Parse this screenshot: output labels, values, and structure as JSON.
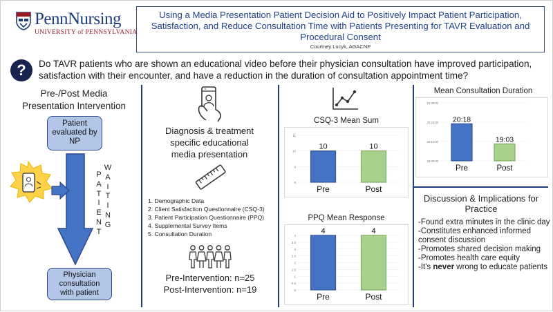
{
  "logo": {
    "brand": "PennNursing",
    "university": "UNIVERSITY of PENNSYLVANIA"
  },
  "title": {
    "line1": "Using a Media Presentation Patient Decision Aid to Positively Impact Patient Participation,",
    "line2": "Satisfaction, and Reduce Consultation Time with Patients Presenting for TAVR Evaluation and",
    "line3": "Procedural Consent",
    "author": "Courtney Lucyk, AGACNP"
  },
  "question": {
    "icon": "?",
    "line1": "Do TAVR patients who are shown an educational video before their physician consultation have improved participation,",
    "line2": "satisfaction with their encounter, and have a reduction in the duration of consultation appointment time?"
  },
  "intervention": {
    "heading_line1": "Pre-/Post Media",
    "heading_line2": "Presentation Intervention",
    "np_box": [
      "Patient",
      "evaluated by",
      "NP"
    ],
    "physician_box": [
      "Physician",
      "consultation",
      "with patient"
    ],
    "word_patient": [
      "P",
      "A",
      "T",
      "I",
      "E",
      "N",
      "T"
    ],
    "word_waiting": [
      "W",
      "A",
      "I",
      "T",
      "I",
      "N",
      "G"
    ]
  },
  "media": {
    "heading": [
      "Diagnosis & treatment",
      "specific educational",
      "media presentation"
    ],
    "measures": [
      "1. Demographic Data",
      "2. Client Satisfaction Questionnaire (CSQ-3)",
      "3. Patient Participation Questionnaire (PPQ)",
      "4. Supplemental Survey Items",
      "5. Consultation Duration"
    ],
    "pre_n": "Pre-Intervention: n=25",
    "post_n": "Post-Intervention: n=19"
  },
  "colors": {
    "pre": "#4472c4",
    "post": "#a9d18e",
    "navy": "#1f3c7a"
  },
  "chart_data": [
    {
      "type": "bar",
      "title": "CSQ-3 Mean Sum",
      "categories": [
        "Pre",
        "Post"
      ],
      "values": [
        10,
        10
      ],
      "data_labels": [
        "10",
        "10"
      ],
      "yticks": [
        "8",
        "9",
        "10",
        "11"
      ],
      "ylim": [
        8,
        11
      ]
    },
    {
      "type": "bar",
      "title": "PPQ Mean Response",
      "categories": [
        "Pre",
        "Post"
      ],
      "values": [
        4,
        4
      ],
      "data_labels": [
        "4",
        "4"
      ],
      "yticks": [
        "0",
        "0.5",
        "1",
        "1.5",
        "2",
        "2.5",
        "3",
        "3.5",
        "4"
      ],
      "ylim": [
        0,
        4
      ]
    },
    {
      "type": "bar",
      "title": "Mean Consultation Duration",
      "categories": [
        "Pre",
        "Post"
      ],
      "values": [
        20.3,
        19.05
      ],
      "data_labels": [
        "20:18",
        "19:03"
      ],
      "yticks": [
        "18:00:00",
        "19:12:00",
        "20:24:00",
        "21:36:00"
      ],
      "ylim": [
        18,
        21.6
      ]
    }
  ],
  "discussion": {
    "heading_line1": "Discussion & Implications for",
    "heading_line2": "Practice",
    "items": [
      "-Found extra minutes in the clinic day",
      "-Constitutes enhanced informed",
      "consent discussion",
      "-Promotes shared decision making",
      "-Promotes health care equity"
    ],
    "last_prefix": "-It's ",
    "last_emph": "never",
    "last_suffix": " wrong to educate patients"
  }
}
